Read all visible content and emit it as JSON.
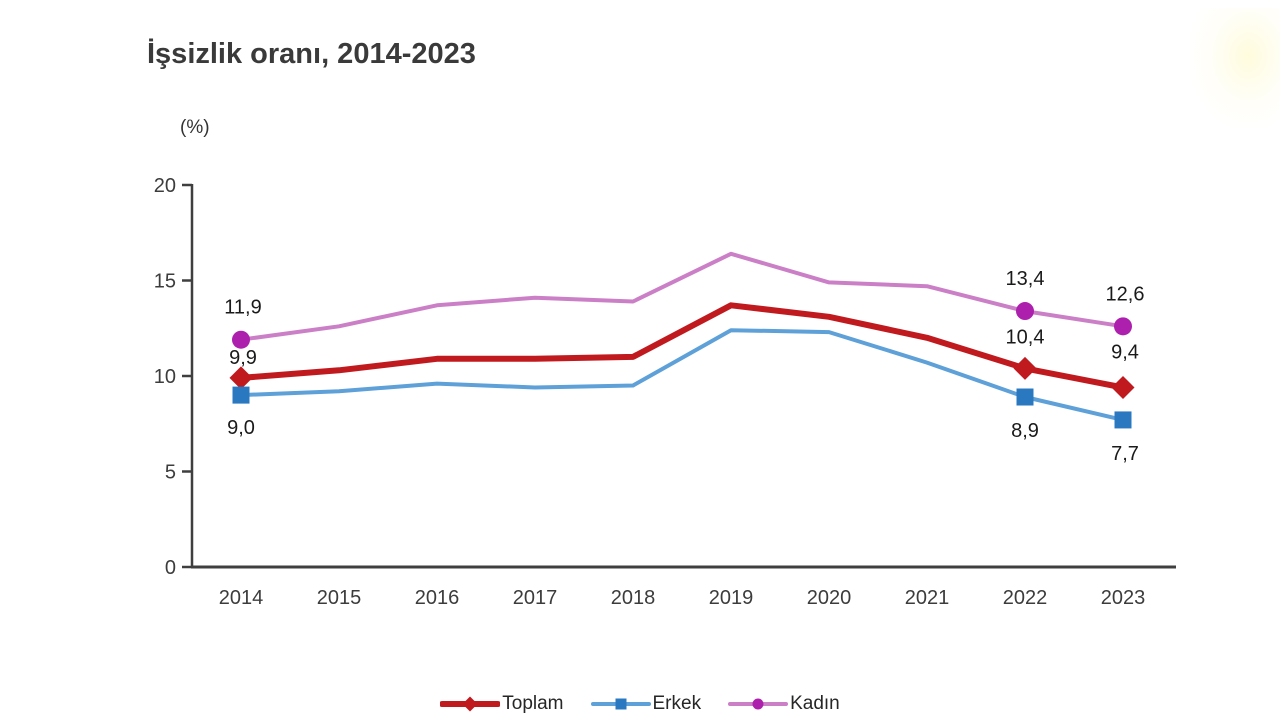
{
  "page": {
    "title": "İşsizlik oranı, 2014-2023",
    "unit_label": "(%)"
  },
  "chart_data": {
    "type": "line",
    "title": "İşsizlik oranı, 2014-2023",
    "ylabel": "(%)",
    "xlabel": "",
    "ylim": [
      0,
      20
    ],
    "yticks": [
      0,
      5,
      10,
      15,
      20
    ],
    "grid": false,
    "legend_position": "bottom-center",
    "axis_color": "#3f3f3f",
    "categories": [
      "2014",
      "2015",
      "2016",
      "2017",
      "2018",
      "2019",
      "2020",
      "2021",
      "2022",
      "2023"
    ],
    "series": [
      {
        "name": "Toplam",
        "marker": "diamond",
        "line_color": "#c01a1f",
        "marker_color": "#c01a1f",
        "line_width": 6,
        "values": [
          9.9,
          10.3,
          10.9,
          10.9,
          11.0,
          13.7,
          13.1,
          12.0,
          10.4,
          9.4
        ],
        "point_labels": {
          "2014": "9,9",
          "2022": "10,4",
          "2023": "9,4"
        }
      },
      {
        "name": "Erkek",
        "marker": "square",
        "line_color": "#5ea0d8",
        "marker_color": "#2a78c0",
        "line_width": 4,
        "values": [
          9.0,
          9.2,
          9.6,
          9.4,
          9.5,
          12.4,
          12.3,
          10.7,
          8.9,
          7.7
        ],
        "point_labels": {
          "2014": "9,0",
          "2022": "8,9",
          "2023": "7,7"
        }
      },
      {
        "name": "Kadın",
        "marker": "circle",
        "line_color": "#cb7fc6",
        "marker_color": "#ad20ad",
        "line_width": 4,
        "values": [
          11.9,
          12.6,
          13.7,
          14.1,
          13.9,
          16.4,
          14.9,
          14.7,
          13.4,
          12.6
        ],
        "point_labels": {
          "2014": "11,9",
          "2022": "13,4",
          "2023": "12,6"
        }
      }
    ]
  }
}
